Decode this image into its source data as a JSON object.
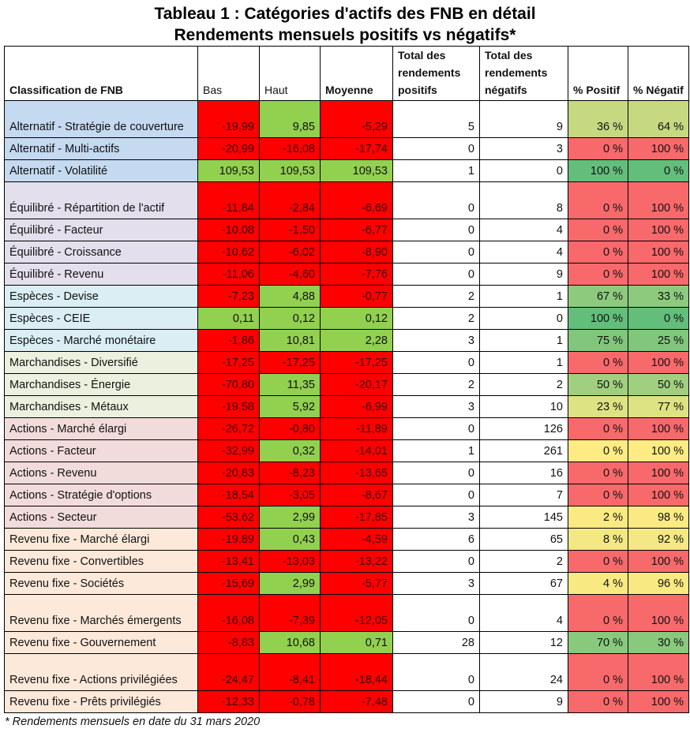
{
  "title_line1": "Tableau 1 : Catégories d'actifs des FNB en détail",
  "title_line2": "Rendements mensuels positifs vs négatifs*",
  "headers": {
    "classification": "Classification de FNB",
    "bas": "Bas",
    "haut": "Haut",
    "moyenne": "Moyenne",
    "positifs": "Total des rendements positifs",
    "negatifs": "Total des rendements négatifs",
    "pct_positif": "% Positif",
    "pct_negatif": "% Négatif"
  },
  "colors": {
    "negative": "#ff0000",
    "positive": "#92d050",
    "Alternatif": "#c5d9f1",
    "Équilibré": "#e4dfec",
    "Espèces": "#daeef3",
    "Marchandises": "#ebf1de",
    "Actions": "#f2dcdb",
    "Revenu fixe": "#fde9d9"
  },
  "rows": [
    {
      "name": "Alternatif - Stratégie de couverture",
      "group": "Alternatif",
      "bas": "-19,99",
      "haut": "9,85",
      "moy": "-5,29",
      "pos": "5",
      "neg": "9",
      "ppos": "36 %",
      "pneg": "64 %",
      "pcolor": "#c6d980"
    },
    {
      "name": "Alternatif - Multi-actifs",
      "group": "Alternatif",
      "bas": "-20,99",
      "haut": "-16,08",
      "moy": "-17,74",
      "pos": "0",
      "neg": "3",
      "ppos": "0 %",
      "pneg": "100 %",
      "pcolor": "#f8696b"
    },
    {
      "name": "Alternatif - Volatilité",
      "group": "Alternatif",
      "bas": "109,53",
      "haut": "109,53",
      "moy": "109,53",
      "pos": "1",
      "neg": "0",
      "ppos": "100 %",
      "pneg": "0 %",
      "pcolor": "#63be7b"
    },
    {
      "name": "Équilibré - Répartition de l'actif",
      "group": "Équilibré",
      "bas": "-11,84",
      "haut": "-2,84",
      "moy": "-6,69",
      "pos": "0",
      "neg": "8",
      "ppos": "0 %",
      "pneg": "100 %",
      "pcolor": "#f8696b"
    },
    {
      "name": "Équilibré - Facteur",
      "group": "Équilibré",
      "bas": "-10,08",
      "haut": "-1,50",
      "moy": "-6,77",
      "pos": "0",
      "neg": "4",
      "ppos": "0 %",
      "pneg": "100 %",
      "pcolor": "#f8696b"
    },
    {
      "name": "Équilibré - Croissance",
      "group": "Équilibré",
      "bas": "-10,62",
      "haut": "-6,02",
      "moy": "-8,90",
      "pos": "0",
      "neg": "4",
      "ppos": "0 %",
      "pneg": "100 %",
      "pcolor": "#f8696b"
    },
    {
      "name": "Équilibré - Revenu",
      "group": "Équilibré",
      "bas": "-11,06",
      "haut": "-4,60",
      "moy": "-7,76",
      "pos": "0",
      "neg": "9",
      "ppos": "0 %",
      "pneg": "100 %",
      "pcolor": "#f8696b"
    },
    {
      "name": "Espèces - Devise",
      "group": "Espèces",
      "bas": "-7,23",
      "haut": "4,88",
      "moy": "-0,77",
      "pos": "2",
      "neg": "1",
      "ppos": "67 %",
      "pneg": "33 %",
      "pcolor": "#8dca7e"
    },
    {
      "name": "Espèces - CEIE",
      "group": "Espèces",
      "bas": "0,11",
      "haut": "0,12",
      "moy": "0,12",
      "pos": "2",
      "neg": "0",
      "ppos": "100 %",
      "pneg": "0 %",
      "pcolor": "#63be7b"
    },
    {
      "name": "Espèces - Marché monétaire",
      "group": "Espèces",
      "bas": "-1,86",
      "haut": "10,81",
      "moy": "2,28",
      "pos": "3",
      "neg": "1",
      "ppos": "75 %",
      "pneg": "25 %",
      "pcolor": "#80c67c"
    },
    {
      "name": "Marchandises - Diversifié",
      "group": "Marchandises",
      "bas": "-17,25",
      "haut": "-17,25",
      "moy": "-17,25",
      "pos": "0",
      "neg": "1",
      "ppos": "0 %",
      "pneg": "100 %",
      "pcolor": "#f8696b"
    },
    {
      "name": "Marchandises - Énergie",
      "group": "Marchandises",
      "bas": "-70,80",
      "haut": "11,35",
      "moy": "-20,17",
      "pos": "2",
      "neg": "2",
      "ppos": "50 %",
      "pneg": "50 %",
      "pcolor": "#a0cf7f"
    },
    {
      "name": "Marchandises - Métaux",
      "group": "Marchandises",
      "bas": "-19,58",
      "haut": "5,92",
      "moy": "-6,99",
      "pos": "3",
      "neg": "10",
      "ppos": "23 %",
      "pneg": "77 %",
      "pcolor": "#dde283"
    },
    {
      "name": "Actions - Marché élargi",
      "group": "Actions",
      "bas": "-26,72",
      "haut": "-0,80",
      "moy": "-11,89",
      "pos": "0",
      "neg": "126",
      "ppos": "0 %",
      "pneg": "100 %",
      "pcolor": "#f8696b"
    },
    {
      "name": "Actions - Facteur",
      "group": "Actions",
      "bas": "-32,99",
      "haut": "0,32",
      "moy": "-14,01",
      "pos": "1",
      "neg": "261",
      "ppos": "0 %",
      "pneg": "100 %",
      "pcolor": "#ffeb84"
    },
    {
      "name": "Actions - Revenu",
      "group": "Actions",
      "bas": "-20,83",
      "haut": "-8,23",
      "moy": "-13,65",
      "pos": "0",
      "neg": "16",
      "ppos": "0 %",
      "pneg": "100 %",
      "pcolor": "#f8696b"
    },
    {
      "name": "Actions - Stratégie d'options",
      "group": "Actions",
      "bas": "-18,54",
      "haut": "-3,05",
      "moy": "-8,67",
      "pos": "0",
      "neg": "7",
      "ppos": "0 %",
      "pneg": "100 %",
      "pcolor": "#f8696b"
    },
    {
      "name": "Actions - Secteur",
      "group": "Actions",
      "bas": "-53,62",
      "haut": "2,99",
      "moy": "-17,85",
      "pos": "3",
      "neg": "145",
      "ppos": "2 %",
      "pneg": "98 %",
      "pcolor": "#fbea83"
    },
    {
      "name": "Revenu fixe - Marché élargi",
      "group": "Revenu fixe",
      "bas": "-19,89",
      "haut": "0,43",
      "moy": "-4,59",
      "pos": "6",
      "neg": "65",
      "ppos": "8 %",
      "pneg": "92 %",
      "pcolor": "#f3e884"
    },
    {
      "name": "Revenu fixe - Convertibles",
      "group": "Revenu fixe",
      "bas": "-13,41",
      "haut": "-13,03",
      "moy": "-13,22",
      "pos": "0",
      "neg": "2",
      "ppos": "0 %",
      "pneg": "100 %",
      "pcolor": "#f8696b"
    },
    {
      "name": "Revenu fixe - Sociétés",
      "group": "Revenu fixe",
      "bas": "-15,69",
      "haut": "2,99",
      "moy": "-5,77",
      "pos": "3",
      "neg": "67",
      "ppos": "4 %",
      "pneg": "96 %",
      "pcolor": "#f9e983"
    },
    {
      "name": "Revenu fixe - Marchés émergents",
      "group": "Revenu fixe",
      "bas": "-16,08",
      "haut": "-7,39",
      "moy": "-12,05",
      "pos": "0",
      "neg": "4",
      "ppos": "0 %",
      "pneg": "100 %",
      "pcolor": "#f8696b"
    },
    {
      "name": "Revenu fixe - Gouvernement",
      "group": "Revenu fixe",
      "bas": "-8,83",
      "haut": "10,68",
      "moy": "0,71",
      "pos": "28",
      "neg": "12",
      "ppos": "70 %",
      "pneg": "30 %",
      "pcolor": "#89c97e"
    },
    {
      "name": "Revenu fixe - Actions privilégiées",
      "group": "Revenu fixe",
      "bas": "-24,47",
      "haut": "-8,41",
      "moy": "-18,44",
      "pos": "0",
      "neg": "24",
      "ppos": "0 %",
      "pneg": "100 %",
      "pcolor": "#f8696b"
    },
    {
      "name": "Revenu fixe - Prêts privilégiés",
      "group": "Revenu fixe",
      "bas": "-12,33",
      "haut": "-0,78",
      "moy": "-7,48",
      "pos": "0",
      "neg": "9",
      "ppos": "0 %",
      "pneg": "100 %",
      "pcolor": "#f8696b"
    }
  ],
  "footnote": "* Rendements mensuels en date du 31 mars 2020"
}
